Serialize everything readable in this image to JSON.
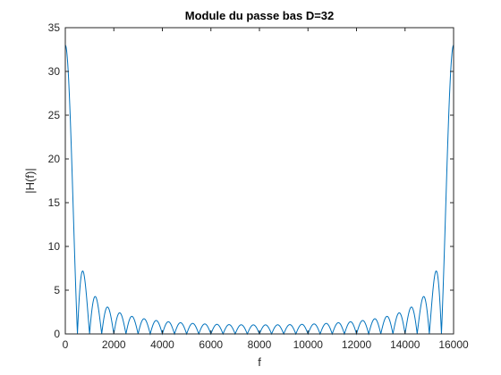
{
  "chart_data": {
    "type": "line",
    "title": "Module du passe bas D=32",
    "xlabel": "f",
    "ylabel": "|H(f)|",
    "xlim": [
      0,
      16000
    ],
    "ylim": [
      0,
      35
    ],
    "xticks": [
      0,
      2000,
      4000,
      6000,
      8000,
      10000,
      12000,
      14000,
      16000
    ],
    "yticks": [
      0,
      5,
      10,
      15,
      20,
      25,
      30,
      35
    ],
    "grid": false,
    "legend": "none",
    "series": [
      {
        "color": "#0072bd",
        "function": "dirichlet",
        "D": 32,
        "fs": 16000,
        "x_start": 0,
        "x_end": 16000,
        "peak_value": 33,
        "first_sidelobe_value": 7.2
      }
    ]
  }
}
